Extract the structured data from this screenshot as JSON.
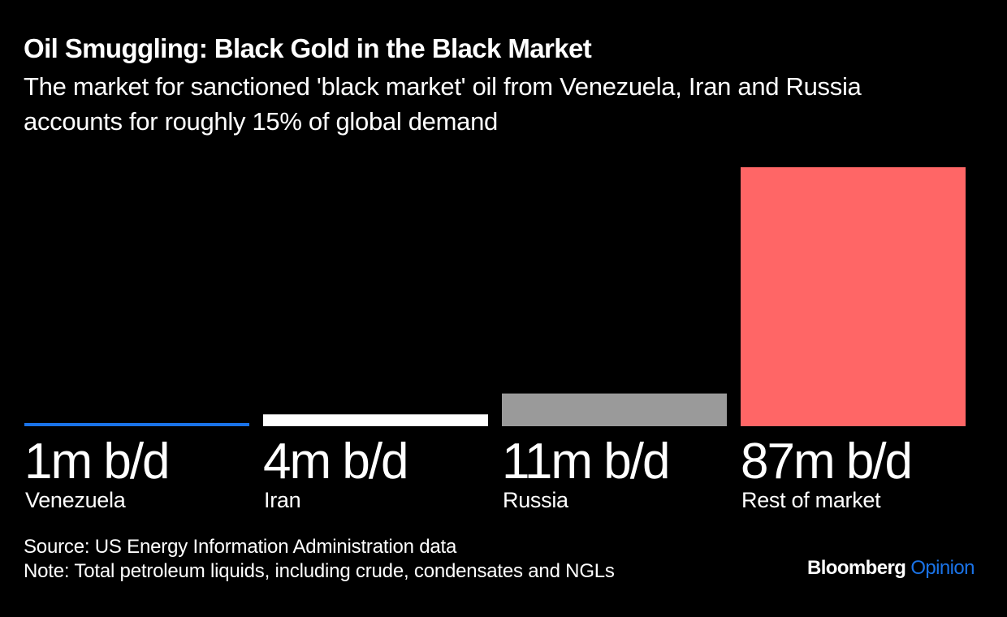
{
  "header": {
    "title": "Oil Smuggling: Black Gold in the Black Market",
    "subtitle": "The market for sanctioned 'black market' oil from Venezuela, Iran and Russia accounts for roughly 15% of global demand"
  },
  "chart_data": {
    "type": "bar",
    "title": "Oil Smuggling: Black Gold in the Black Market",
    "subtitle": "The market for sanctioned 'black market' oil from Venezuela, Iran and Russia accounts for roughly 15% of global demand",
    "categories": [
      "Venezuela",
      "Iran",
      "Russia",
      "Rest of market"
    ],
    "values": [
      1,
      4,
      11,
      87
    ],
    "value_labels": [
      "1m b/d",
      "4m b/d",
      "11m b/d",
      "87m b/d"
    ],
    "colors": [
      "#1a73e8",
      "#ffffff",
      "#9a9a9a",
      "#ff6666"
    ],
    "unit": "million barrels per day",
    "xlabel": "",
    "ylabel": "",
    "ylim": [
      0,
      87
    ],
    "grid": false,
    "legend": "none"
  },
  "footer": {
    "source": "Source: US Energy Information Administration data",
    "note": "Note: Total petroleum liquids, including crude, condensates and NGLs",
    "logo_main": "Bloomberg",
    "logo_accent": "Opinion",
    "logo_accent_color": "#1a73e8"
  }
}
